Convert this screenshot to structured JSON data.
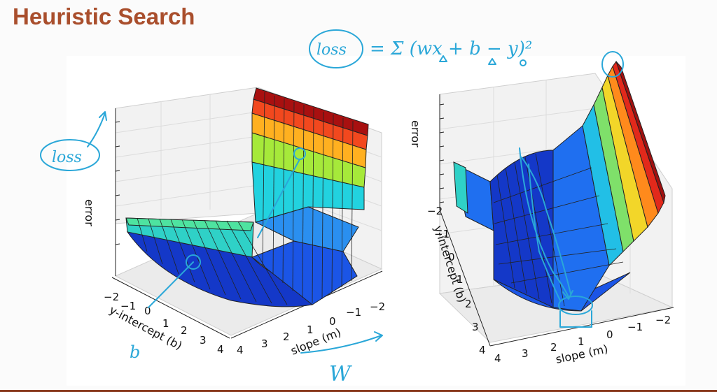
{
  "slide": {
    "title": "Heuristic Search"
  },
  "plots": [
    {
      "z_label": "error",
      "b_label": "y-intercept (b)",
      "m_label": "slope (m)",
      "b_ticks": [
        "−2",
        "−1",
        "0",
        "1",
        "2",
        "3",
        "4"
      ],
      "m_ticks": [
        "4",
        "3",
        "2",
        "1",
        "0",
        "−1",
        "−2"
      ]
    },
    {
      "z_label": "error",
      "b_label": "y-intercept (b)",
      "m_label": "slope (m)",
      "b_ticks": [
        "−2",
        "−1",
        "0",
        "1",
        "2",
        "3",
        "4"
      ],
      "m_ticks": [
        "4",
        "3",
        "2",
        "1",
        "0",
        "−1",
        "−2"
      ]
    }
  ],
  "annotations": {
    "formula_lhs": "loss",
    "formula_rhs": "= Σ (wx + b − y)²",
    "loss_left": "loss",
    "w_label": "W",
    "b_label": "b"
  },
  "colors": {
    "title": "#a94e2c",
    "ink": "#2aa7d8"
  }
}
